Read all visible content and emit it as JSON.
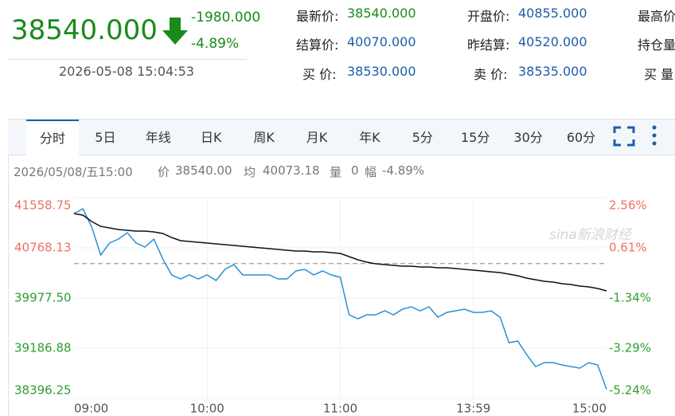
{
  "header": {
    "price": "38540.000",
    "change": "-1980.000",
    "change_pct": "-4.89%",
    "timestamp": "2026-05-08 15:04:53"
  },
  "quote": {
    "rows": [
      [
        {
          "label": "最新价:",
          "value": "38540.000"
        },
        {
          "label": "开盘价:",
          "value": "40855.000"
        },
        {
          "label": "最高价"
        }
      ],
      [
        {
          "label": "结算价:",
          "value": "40070.000"
        },
        {
          "label": "昨结算:",
          "value": "40520.000"
        },
        {
          "label": "持仓量"
        }
      ],
      [
        {
          "label": "买 价:",
          "value": "38530.000"
        },
        {
          "label": "卖 价:",
          "value": "38535.000"
        },
        {
          "label": "买 量"
        }
      ]
    ]
  },
  "tabs": [
    "分时",
    "5日",
    "年线",
    "日K",
    "周K",
    "月K",
    "年K",
    "5分",
    "15分",
    "30分",
    "60分"
  ],
  "active_tab": 0,
  "info": {
    "datetime": "2026/05/08/五15:00",
    "price_label": "价",
    "price": "38540.00",
    "avg_label": "均",
    "avg": "40073.18",
    "vol_label": "量",
    "vol": "0",
    "pct_label": "幅",
    "pct": "-4.89%"
  },
  "watermark": "sina新浪财经",
  "chart_data": {
    "type": "line",
    "categories": [
      "09:00",
      null,
      null,
      null,
      null,
      null,
      null,
      null,
      null,
      null,
      null,
      null,
      null,
      null,
      null,
      "10:00",
      null,
      null,
      null,
      null,
      null,
      null,
      null,
      null,
      null,
      null,
      null,
      null,
      null,
      null,
      "11:00",
      null,
      null,
      null,
      null,
      null,
      null,
      null,
      null,
      null,
      null,
      null,
      null,
      null,
      null,
      "13:59",
      null,
      null,
      null,
      null,
      null,
      null,
      null,
      null,
      null,
      null,
      null,
      null,
      null,
      null,
      "15:00"
    ],
    "series": [
      {
        "color": "#2a8fd4",
        "values": [
          41308,
          41383,
          41094,
          40655,
          40843,
          40906,
          41007,
          40843,
          40781,
          40906,
          40592,
          40341,
          40279,
          40341,
          40279,
          40341,
          40254,
          40429,
          40505,
          40341,
          40341,
          40341,
          40341,
          40279,
          40279,
          40404,
          40429,
          40341,
          40404,
          40341,
          40304,
          39714,
          39651,
          39714,
          39714,
          39777,
          39714,
          39802,
          39839,
          39777,
          39839,
          39676,
          39752,
          39777,
          39802,
          39752,
          39752,
          39777,
          39676,
          39275,
          39300,
          39086,
          38898,
          38961,
          38961,
          38923,
          38898,
          38873,
          38961,
          38923,
          38540
        ]
      },
      {
        "color": "#111111",
        "values": [
          41308,
          41283,
          41182,
          41107,
          41082,
          41057,
          41044,
          41032,
          41032,
          41019,
          40994,
          40931,
          40881,
          40868,
          40856,
          40843,
          40831,
          40818,
          40806,
          40793,
          40781,
          40768,
          40755,
          40743,
          40730,
          40718,
          40718,
          40705,
          40705,
          40693,
          40680,
          40630,
          40580,
          40542,
          40517,
          40505,
          40492,
          40479,
          40479,
          40467,
          40467,
          40454,
          40454,
          40442,
          40429,
          40417,
          40404,
          40391,
          40379,
          40354,
          40329,
          40291,
          40266,
          40241,
          40228,
          40203,
          40191,
          40166,
          40153,
          40128,
          40090
        ]
      }
    ],
    "baseline": 40520,
    "ylim": [
      38396.25,
      41558.75
    ],
    "yticks": [
      41558.75,
      40768.13,
      {
        "value": 39977.5,
        "label": "39977.50"
      },
      39186.88,
      38396.25
    ],
    "y2lim": [
      -5.24,
      2.56
    ],
    "y2ticks": [
      {
        "value": 2.56,
        "label": "2.56%"
      },
      {
        "value": 0.61,
        "label": "0.61%"
      },
      {
        "value": -1.34,
        "label": "-1.34%"
      },
      {
        "value": -3.29,
        "label": "-3.29%"
      },
      {
        "value": -5.24,
        "label": "-5.24%"
      }
    ],
    "grid": true
  }
}
